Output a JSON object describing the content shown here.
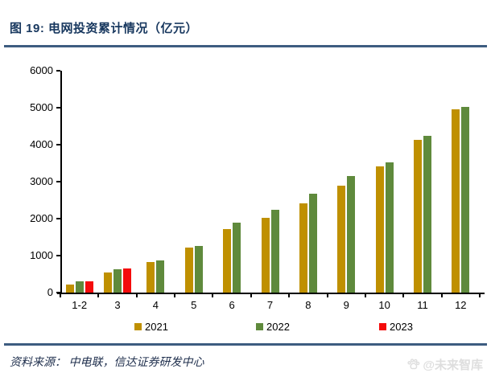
{
  "figure": {
    "title": "图 19:  电网投资累计情况（亿元）",
    "source_label": "资料来源： 中电联，信达证券研发中心",
    "watermark_text": "@未来智库"
  },
  "colors": {
    "title_navy": "#17375E",
    "rule_blue": "#3D5C80",
    "axis_black": "#000000",
    "watermark_gray": "#DEDEDE",
    "bar_2021": "#BF9000",
    "bar_2022": "#5F8A3C",
    "bar_2023": "#F40B0B"
  },
  "chart_data": {
    "type": "bar",
    "title": "电网投资累计情况（亿元）",
    "xlabel": "",
    "ylabel": "",
    "categories": [
      "1-2",
      "3",
      "4",
      "5",
      "6",
      "7",
      "8",
      "9",
      "10",
      "11",
      "12"
    ],
    "series": [
      {
        "name": "2021",
        "color": "#BF9000",
        "values": [
          220,
          540,
          820,
          1210,
          1720,
          2020,
          2410,
          2890,
          3410,
          4120,
          4950
        ]
      },
      {
        "name": "2022",
        "color": "#5F8A3C",
        "values": [
          300,
          620,
          880,
          1260,
          1900,
          2240,
          2670,
          3150,
          3520,
          4230,
          5020
        ]
      },
      {
        "name": "2023",
        "color": "#F40B0B",
        "values": [
          310,
          660,
          null,
          null,
          null,
          null,
          null,
          null,
          null,
          null,
          null
        ]
      }
    ],
    "ylim": [
      0,
      6000
    ],
    "yticks": [
      0,
      1000,
      2000,
      3000,
      4000,
      5000,
      6000
    ],
    "grid": false,
    "legend_position": "bottom"
  }
}
